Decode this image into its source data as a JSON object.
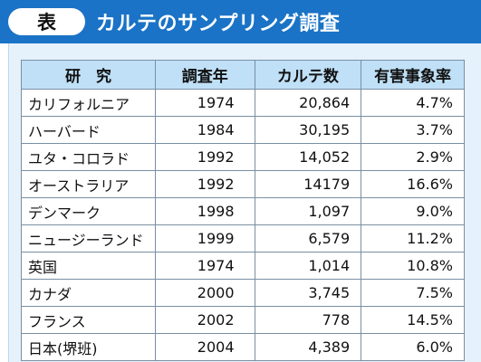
{
  "header": {
    "badge": "表",
    "title": "カルテのサンプリング調査"
  },
  "table": {
    "columns": [
      "研　究",
      "調査年",
      "カルテ数",
      "有害事象率"
    ],
    "rows": [
      {
        "study": "カリフォルニア",
        "year": "1974",
        "charts": "20,864",
        "rate": "4.7%"
      },
      {
        "study": "ハーバード",
        "year": "1984",
        "charts": "30,195",
        "rate": "3.7%"
      },
      {
        "study": "ユタ・コロラド",
        "year": "1992",
        "charts": "14,052",
        "rate": "2.9%"
      },
      {
        "study": "オーストラリア",
        "year": "1992",
        "charts": "14179",
        "rate": "16.6%"
      },
      {
        "study": "デンマーク",
        "year": "1998",
        "charts": "1,097",
        "rate": "9.0%"
      },
      {
        "study": "ニュージーランド",
        "year": "1999",
        "charts": "6,579",
        "rate": "11.2%"
      },
      {
        "study": "英国",
        "year": "1974",
        "charts": "1,014",
        "rate": "10.8%"
      },
      {
        "study": "カナダ",
        "year": "2000",
        "charts": "3,745",
        "rate": "7.5%"
      },
      {
        "study": "フランス",
        "year": "2002",
        "charts": "778",
        "rate": "14.5%"
      },
      {
        "study": "日本(堺班)",
        "year": "2004",
        "charts": "4,389",
        "rate": "6.0%"
      }
    ]
  }
}
